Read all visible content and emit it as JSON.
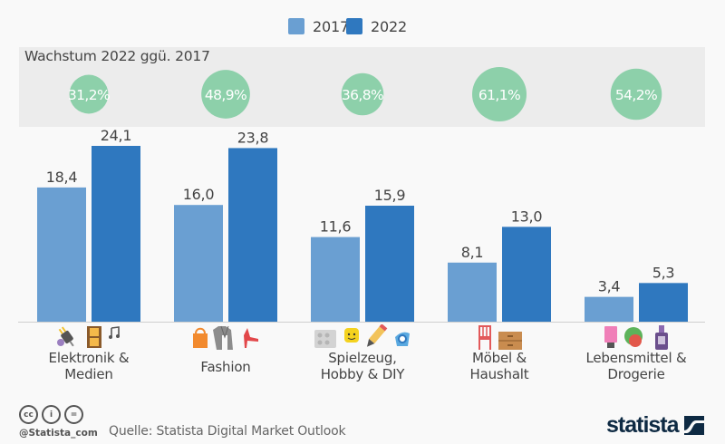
{
  "legend": [
    {
      "label": "2017",
      "color": "#6a9fd2"
    },
    {
      "label": "2022",
      "color": "#2f78bf"
    }
  ],
  "growth": {
    "title": "Wachstum 2022 ggü. 2017",
    "circle_color": "#8dd0aa",
    "values": [
      "31,2%",
      "48,9%",
      "36,8%",
      "61,1%",
      "54,2%"
    ],
    "numeric": [
      31.2,
      48.9,
      36.8,
      61.1,
      54.2
    ]
  },
  "categories": [
    {
      "label_line1": "Elektronik &",
      "label_line2": "Medien",
      "icons": [
        "plug-icon",
        "film-strip-icon",
        "music-note-icon"
      ]
    },
    {
      "label_line1": "Fashion",
      "label_line2": "",
      "icons": [
        "handbag-icon",
        "jacket-icon",
        "high-heel-icon"
      ]
    },
    {
      "label_line1": "Spielzeug,",
      "label_line2": "Hobby & DIY",
      "icons": [
        "lego-brick-icon",
        "toy-figure-icon",
        "pencil-icon",
        "paint-icon"
      ]
    },
    {
      "label_line1": "Möbel &",
      "label_line2": "Haushalt",
      "icons": [
        "chair-icon",
        "dresser-icon"
      ]
    },
    {
      "label_line1": "Lebensmittel &",
      "label_line2": "Drogerie",
      "icons": [
        "cosmetic-tube-icon",
        "vegetables-icon",
        "bottle-icon"
      ]
    }
  ],
  "chart_data": {
    "type": "bar",
    "title": "",
    "xlabel": "",
    "ylabel": "",
    "categories": [
      "Elektronik & Medien",
      "Fashion",
      "Spielzeug, Hobby & DIY",
      "Möbel & Haushalt",
      "Lebensmittel & Drogerie"
    ],
    "series": [
      {
        "name": "2017",
        "color": "#6a9fd2",
        "values": [
          18.4,
          16.0,
          11.6,
          8.1,
          3.4
        ],
        "labels": [
          "18,4",
          "16,0",
          "11,6",
          "8,1",
          "3,4"
        ]
      },
      {
        "name": "2022",
        "color": "#2f78bf",
        "values": [
          24.1,
          23.8,
          15.9,
          13.0,
          5.3
        ],
        "labels": [
          "24,1",
          "23,8",
          "15,9",
          "13,0",
          "5,3"
        ]
      }
    ],
    "annotations": {
      "growth_title": "Wachstum 2022 ggü. 2017",
      "growth_values": [
        "31,2%",
        "48,9%",
        "36,8%",
        "61,1%",
        "54,2%"
      ]
    },
    "ylim": [
      0,
      26
    ],
    "grid": false,
    "legend_position": "top-center"
  },
  "footer": {
    "license_icons": [
      "cc-icon",
      "by-icon",
      "nd-icon"
    ],
    "license_labels": [
      "cc",
      "i",
      "="
    ],
    "handle": "@Statista_com",
    "source": "Quelle: Statista Digital Market Outlook",
    "brand": "statista"
  }
}
